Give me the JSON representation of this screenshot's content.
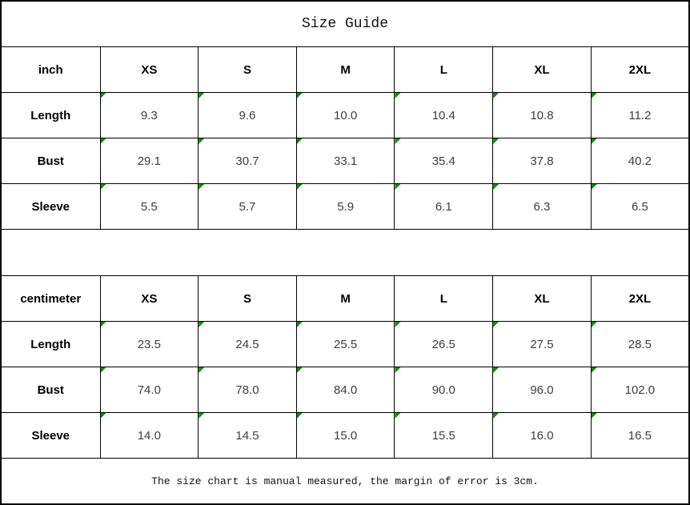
{
  "colors": {
    "border": "#000000",
    "background": "#ffffff",
    "cell_marker_green": "#118a11",
    "value_text": "#3d3d3d",
    "header_text": "#000000"
  },
  "chart_data": {
    "type": "table",
    "title": "Size Guide",
    "note": "The size chart is manual measured, the margin of error is 3cm.",
    "tables": [
      {
        "unit": "inch",
        "columns": [
          "XS",
          "S",
          "M",
          "L",
          "XL",
          "2XL"
        ],
        "rows": [
          {
            "label": "Length",
            "values": [
              "9.3",
              "9.6",
              "10.0",
              "10.4",
              "10.8",
              "11.2"
            ]
          },
          {
            "label": "Bust",
            "values": [
              "29.1",
              "30.7",
              "33.1",
              "35.4",
              "37.8",
              "40.2"
            ]
          },
          {
            "label": "Sleeve",
            "values": [
              "5.5",
              "5.7",
              "5.9",
              "6.1",
              "6.3",
              "6.5"
            ]
          }
        ]
      },
      {
        "unit": "centimeter",
        "columns": [
          "XS",
          "S",
          "M",
          "L",
          "XL",
          "2XL"
        ],
        "rows": [
          {
            "label": "Length",
            "values": [
              "23.5",
              "24.5",
              "25.5",
              "26.5",
              "27.5",
              "28.5"
            ]
          },
          {
            "label": "Bust",
            "values": [
              "74.0",
              "78.0",
              "84.0",
              "90.0",
              "96.0",
              "102.0"
            ]
          },
          {
            "label": "Sleeve",
            "values": [
              "14.0",
              "14.5",
              "15.0",
              "15.5",
              "16.0",
              "16.5"
            ]
          }
        ]
      }
    ]
  }
}
